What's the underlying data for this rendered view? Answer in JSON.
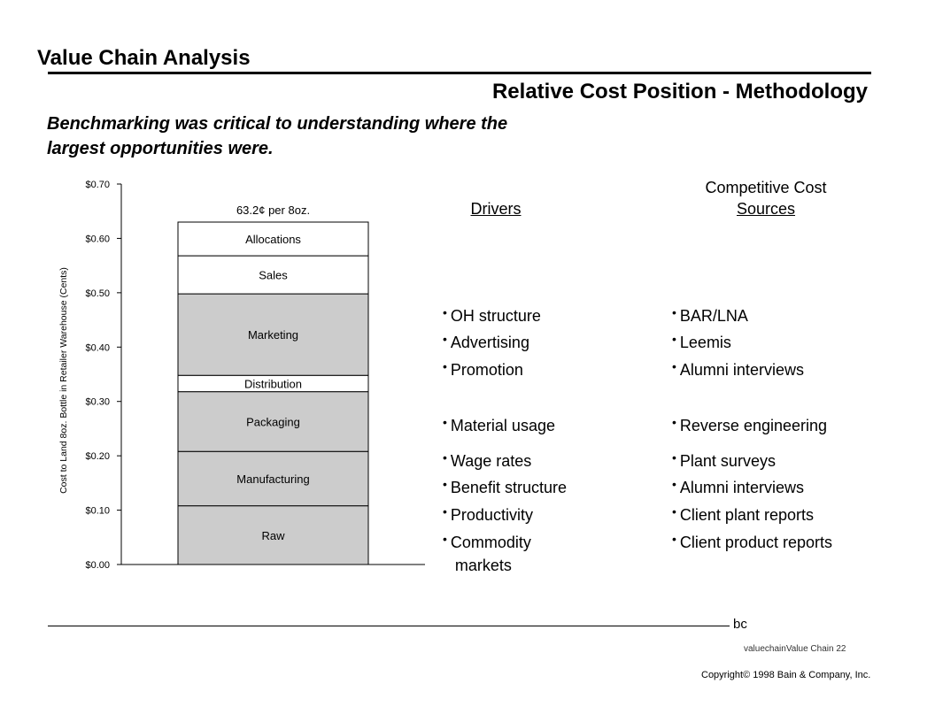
{
  "page": {
    "title": "Value Chain Analysis",
    "subtitle": "Relative Cost Position - Methodology",
    "headline": "Benchmarking was critical to understanding where the largest opportunities were."
  },
  "chart_data": {
    "type": "bar",
    "stacked": true,
    "ylabel": "Cost to Land 8oz. Bottle in Retailer Warehouse (Cents)",
    "ylim": [
      0,
      0.7
    ],
    "yticks": [
      "$0.00",
      "$0.10",
      "$0.20",
      "$0.30",
      "$0.40",
      "$0.50",
      "$0.60",
      "$0.70"
    ],
    "ytick_values": [
      0,
      0.1,
      0.2,
      0.3,
      0.4,
      0.5,
      0.6,
      0.7
    ],
    "total_label": "63.2¢ per 8oz.",
    "segments": [
      {
        "name": "Raw",
        "value": 0.108,
        "color": "#cccccc"
      },
      {
        "name": "Manufacturing",
        "value": 0.1,
        "color": "#cccccc"
      },
      {
        "name": "Packaging",
        "value": 0.11,
        "color": "#cccccc"
      },
      {
        "name": "Distribution",
        "value": 0.03,
        "color": "#ffffff"
      },
      {
        "name": "Marketing",
        "value": 0.15,
        "color": "#cccccc"
      },
      {
        "name": "Sales",
        "value": 0.07,
        "color": "#ffffff"
      },
      {
        "name": "Allocations",
        "value": 0.062,
        "color": "#ffffff"
      }
    ]
  },
  "columns": {
    "drivers_heading": "Drivers",
    "sources_heading_line1": "Competitive Cost",
    "sources_heading_line2": "Sources"
  },
  "drivers": [
    "OH structure",
    "Advertising",
    "Promotion",
    "Material usage",
    "Wage rates",
    "Benefit structure",
    "Productivity",
    "Commodity\nmarkets"
  ],
  "sources": [
    "BAR/LNA",
    "Leemis",
    "Alumni interviews",
    "Reverse engineering",
    "Plant surveys",
    "Alumni interviews",
    "Client plant reports",
    "Client product reports"
  ],
  "footer": {
    "mark": "bc",
    "page_ref": "valuechainValue Chain  22",
    "copyright": "Copyright© 1998 Bain & Company, Inc."
  }
}
